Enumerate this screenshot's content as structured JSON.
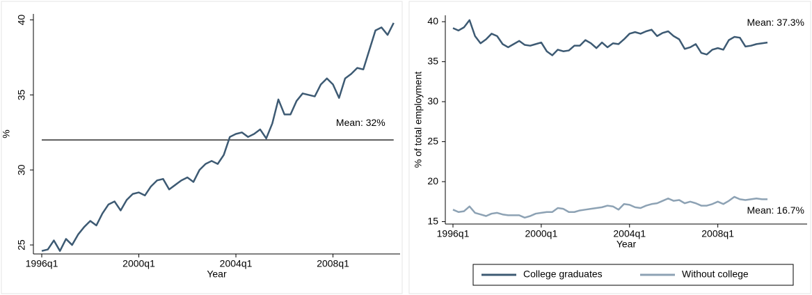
{
  "chart_data": [
    {
      "type": "line",
      "xlabel": "Year",
      "ylabel": "%",
      "x": [
        "1996q1",
        "1996q2",
        "1996q3",
        "1996q4",
        "1997q1",
        "1997q2",
        "1997q3",
        "1997q4",
        "1998q1",
        "1998q2",
        "1998q3",
        "1998q4",
        "1999q1",
        "1999q2",
        "1999q3",
        "1999q4",
        "2000q1",
        "2000q2",
        "2000q3",
        "2000q4",
        "2001q1",
        "2001q2",
        "2001q3",
        "2001q4",
        "2002q1",
        "2002q2",
        "2002q3",
        "2002q4",
        "2003q1",
        "2003q2",
        "2003q3",
        "2003q4",
        "2004q1",
        "2004q2",
        "2004q3",
        "2004q4",
        "2005q1",
        "2005q2",
        "2005q3",
        "2005q4",
        "2006q1",
        "2006q2",
        "2006q3",
        "2006q4",
        "2007q1",
        "2007q2",
        "2007q3",
        "2007q4",
        "2008q1",
        "2008q2",
        "2008q3",
        "2008q4",
        "2009q1",
        "2009q2",
        "2009q3",
        "2009q4",
        "2010q1",
        "2010q2",
        "2010q3"
      ],
      "series": [
        {
          "color": "#3d5a73",
          "values": [
            24.6,
            24.7,
            25.3,
            24.6,
            25.4,
            25.0,
            25.7,
            26.2,
            26.6,
            26.3,
            27.1,
            27.7,
            27.9,
            27.3,
            28.0,
            28.4,
            28.5,
            28.3,
            28.9,
            29.3,
            29.4,
            28.7,
            29.0,
            29.3,
            29.5,
            29.2,
            30.0,
            30.4,
            30.6,
            30.4,
            31.0,
            32.2,
            32.4,
            32.5,
            32.2,
            32.4,
            32.7,
            32.1,
            33.1,
            34.7,
            33.7,
            33.7,
            34.6,
            35.1,
            35.0,
            34.9,
            35.7,
            36.1,
            35.7,
            34.8,
            36.1,
            36.4,
            36.8,
            36.7,
            38.0,
            39.3,
            39.5,
            39.0,
            39.8
          ]
        }
      ],
      "mean": 32,
      "mean_color": "#000000",
      "annotation": "Mean: 32%",
      "ylim": [
        24.4,
        40.4
      ],
      "yticks": [
        25,
        30,
        35,
        40
      ],
      "xticks": [
        "1996q1",
        "2000q1",
        "2004q1",
        "2008q1"
      ],
      "ytick_rotation": -90
    },
    {
      "type": "line",
      "xlabel": "Year",
      "ylabel": "% of total employment",
      "x": [
        "1996q1",
        "1996q2",
        "1996q3",
        "1996q4",
        "1997q1",
        "1997q2",
        "1997q3",
        "1997q4",
        "1998q1",
        "1998q2",
        "1998q3",
        "1998q4",
        "1999q1",
        "1999q2",
        "1999q3",
        "1999q4",
        "2000q1",
        "2000q2",
        "2000q3",
        "2000q4",
        "2001q1",
        "2001q2",
        "2001q3",
        "2001q4",
        "2002q1",
        "2002q2",
        "2002q3",
        "2002q4",
        "2003q1",
        "2003q2",
        "2003q3",
        "2003q4",
        "2004q1",
        "2004q2",
        "2004q3",
        "2004q4",
        "2005q1",
        "2005q2",
        "2005q3",
        "2005q4",
        "2006q1",
        "2006q2",
        "2006q3",
        "2006q4",
        "2007q1",
        "2007q2",
        "2007q3",
        "2007q4",
        "2008q1",
        "2008q2",
        "2008q3",
        "2008q4",
        "2009q1",
        "2009q2",
        "2009q3",
        "2009q4",
        "2010q1",
        "2010q2"
      ],
      "series": [
        {
          "name": "College graduates",
          "color": "#3d5a73",
          "annotation": "Mean: 37.3%",
          "values": [
            39.2,
            38.9,
            39.3,
            40.2,
            38.2,
            37.3,
            37.8,
            38.5,
            38.2,
            37.2,
            36.8,
            37.2,
            37.6,
            37.1,
            37.0,
            37.2,
            37.4,
            36.3,
            35.8,
            36.5,
            36.3,
            36.4,
            37.0,
            37.0,
            37.7,
            37.3,
            36.7,
            37.4,
            36.8,
            37.3,
            37.2,
            37.8,
            38.5,
            38.7,
            38.5,
            38.8,
            39.0,
            38.2,
            38.6,
            38.8,
            38.2,
            37.8,
            36.6,
            36.8,
            37.2,
            36.1,
            35.9,
            36.5,
            36.7,
            36.5,
            37.7,
            38.1,
            38.0,
            36.9,
            37.0,
            37.2,
            37.3,
            37.4
          ]
        },
        {
          "name": "Without college",
          "color": "#8da2b4",
          "annotation": "Mean: 16.7%",
          "values": [
            16.5,
            16.2,
            16.3,
            16.9,
            16.1,
            15.9,
            15.7,
            16.0,
            16.1,
            15.9,
            15.8,
            15.8,
            15.8,
            15.5,
            15.7,
            16.0,
            16.1,
            16.2,
            16.2,
            16.7,
            16.6,
            16.2,
            16.2,
            16.4,
            16.5,
            16.6,
            16.7,
            16.8,
            17.0,
            16.9,
            16.5,
            17.2,
            17.1,
            16.8,
            16.7,
            17.0,
            17.2,
            17.3,
            17.6,
            17.9,
            17.6,
            17.7,
            17.3,
            17.5,
            17.3,
            17.0,
            17.0,
            17.2,
            17.5,
            17.2,
            17.6,
            18.1,
            17.8,
            17.7,
            17.8,
            17.9,
            17.8,
            17.8
          ]
        }
      ],
      "ylim": [
        14.7,
        40.8
      ],
      "yticks": [
        15,
        20,
        25,
        30,
        35,
        40
      ],
      "xticks": [
        "1996q1",
        "2000q1",
        "2004q1",
        "2008q1"
      ],
      "ytick_rotation": 0,
      "legend": "bottom"
    }
  ]
}
